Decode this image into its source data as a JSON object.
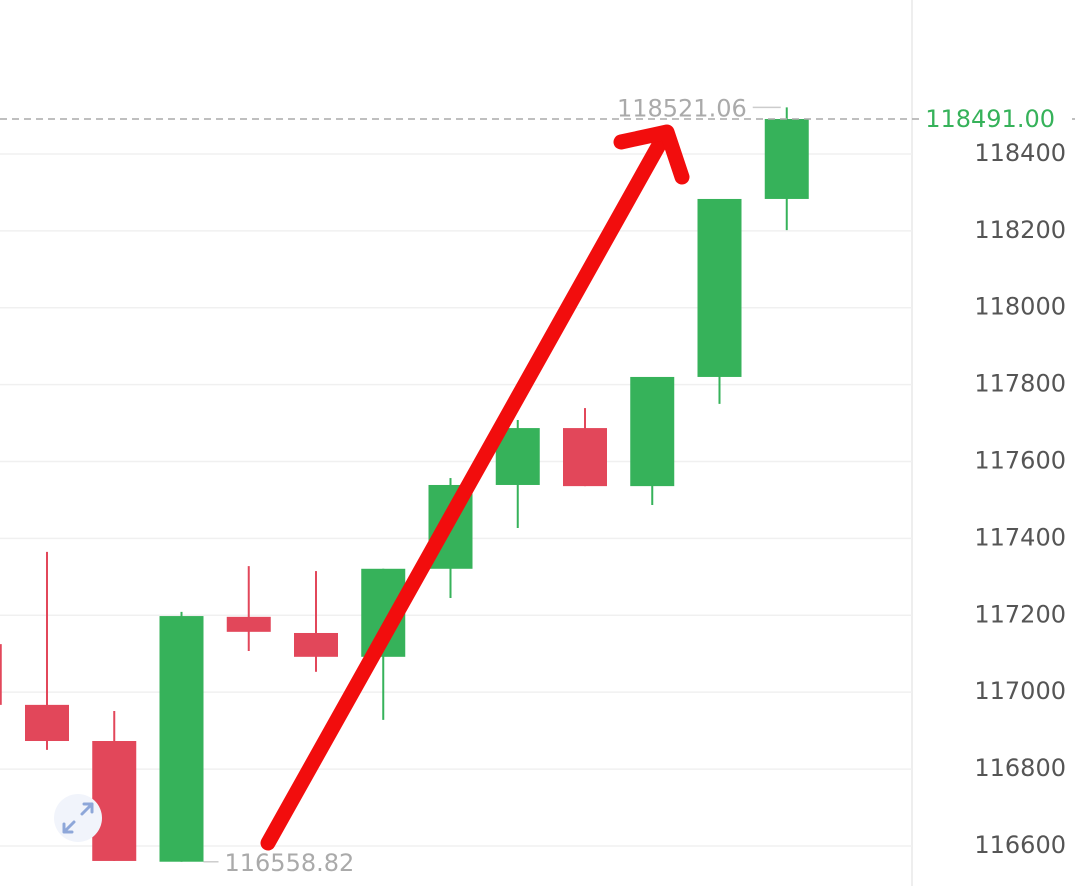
{
  "chart_data": {
    "type": "candlestick",
    "open": [
      117125,
      116967,
      116873,
      116559,
      117196,
      117154,
      117092,
      117321,
      117539,
      117687,
      117536,
      117820,
      118283
    ],
    "high": [
      117130,
      117365,
      116951,
      117209,
      117328,
      117315,
      117321,
      117557,
      117708,
      117739,
      117820,
      118283,
      118521.06
    ],
    "low": [
      116960,
      116850,
      116561,
      116558.82,
      117107,
      117053,
      116928,
      117245,
      117427,
      117536,
      117487,
      117750,
      118202
    ],
    "close": [
      116967,
      116873,
      116561,
      117198,
      117157,
      117092,
      117321,
      117539,
      117687,
      117536,
      117820,
      118283,
      118491
    ],
    "up_color": "#36b25a",
    "down_color": "#e2475a",
    "ylim": [
      116500,
      118800
    ],
    "yticks": [
      116600,
      116800,
      117000,
      117200,
      117400,
      117600,
      117800,
      118000,
      118200,
      118400
    ],
    "grid": true,
    "last_price": {
      "value": 118491,
      "label": "118491.00"
    }
  }
}
